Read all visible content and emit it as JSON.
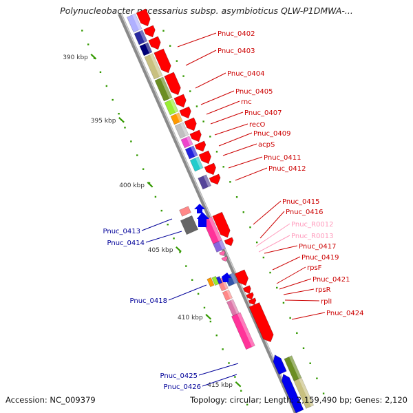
{
  "title": "Polynucleobacter necessarius subsp. asymbioticus QLW-P1DMWA-...",
  "footer": {
    "accession": "Accession: NC_009379",
    "summary": "Topology: circular; Length: 2,159,490 bp; Genes: 2,120"
  },
  "scale_labels": [
    "390 kbp",
    "395 kbp",
    "400 kbp",
    "405 kbp",
    "410 kbp",
    "415 kbp"
  ],
  "colors": {
    "backbone": "#8a8a8a",
    "gene_label_red": "#cc0000",
    "gene_label_pink": "#ff99bb",
    "gene_label_blue": "#000099",
    "forward_strand_arrow": "#ff0000",
    "reverse_strand_arrow": "#0000ee",
    "tick": "#339900"
  },
  "gene_labels_right": [
    {
      "text": "Pnuc_0402",
      "color": "#cc0000"
    },
    {
      "text": "Pnuc_0403",
      "color": "#cc0000"
    },
    {
      "text": "Pnuc_0404",
      "color": "#cc0000"
    },
    {
      "text": "Pnuc_0405",
      "color": "#cc0000"
    },
    {
      "text": "rnc",
      "color": "#cc0000"
    },
    {
      "text": "Pnuc_0407",
      "color": "#cc0000"
    },
    {
      "text": "recO",
      "color": "#cc0000"
    },
    {
      "text": "Pnuc_0409",
      "color": "#cc0000"
    },
    {
      "text": "acpS",
      "color": "#cc0000"
    },
    {
      "text": "Pnuc_0411",
      "color": "#cc0000"
    },
    {
      "text": "Pnuc_0412",
      "color": "#cc0000"
    },
    {
      "text": "Pnuc_0415",
      "color": "#cc0000"
    },
    {
      "text": "Pnuc_0416",
      "color": "#cc0000"
    },
    {
      "text": "Pnuc_R0012",
      "color": "#ff99bb"
    },
    {
      "text": "Pnuc_R0013",
      "color": "#ff99bb"
    },
    {
      "text": "Pnuc_0417",
      "color": "#cc0000"
    },
    {
      "text": "Pnuc_0419",
      "color": "#cc0000"
    },
    {
      "text": "rpsF",
      "color": "#cc0000"
    },
    {
      "text": "Pnuc_0421",
      "color": "#cc0000"
    },
    {
      "text": "rpsR",
      "color": "#cc0000"
    },
    {
      "text": "rplI",
      "color": "#cc0000"
    },
    {
      "text": "Pnuc_0424",
      "color": "#cc0000"
    }
  ],
  "gene_labels_left": [
    {
      "text": "Pnuc_0413",
      "color": "#000099"
    },
    {
      "text": "Pnuc_0414",
      "color": "#000099"
    },
    {
      "text": "Pnuc_0418",
      "color": "#000099"
    },
    {
      "text": "Pnuc_0425",
      "color": "#000099"
    },
    {
      "text": "Pnuc_0426",
      "color": "#000099"
    }
  ]
}
